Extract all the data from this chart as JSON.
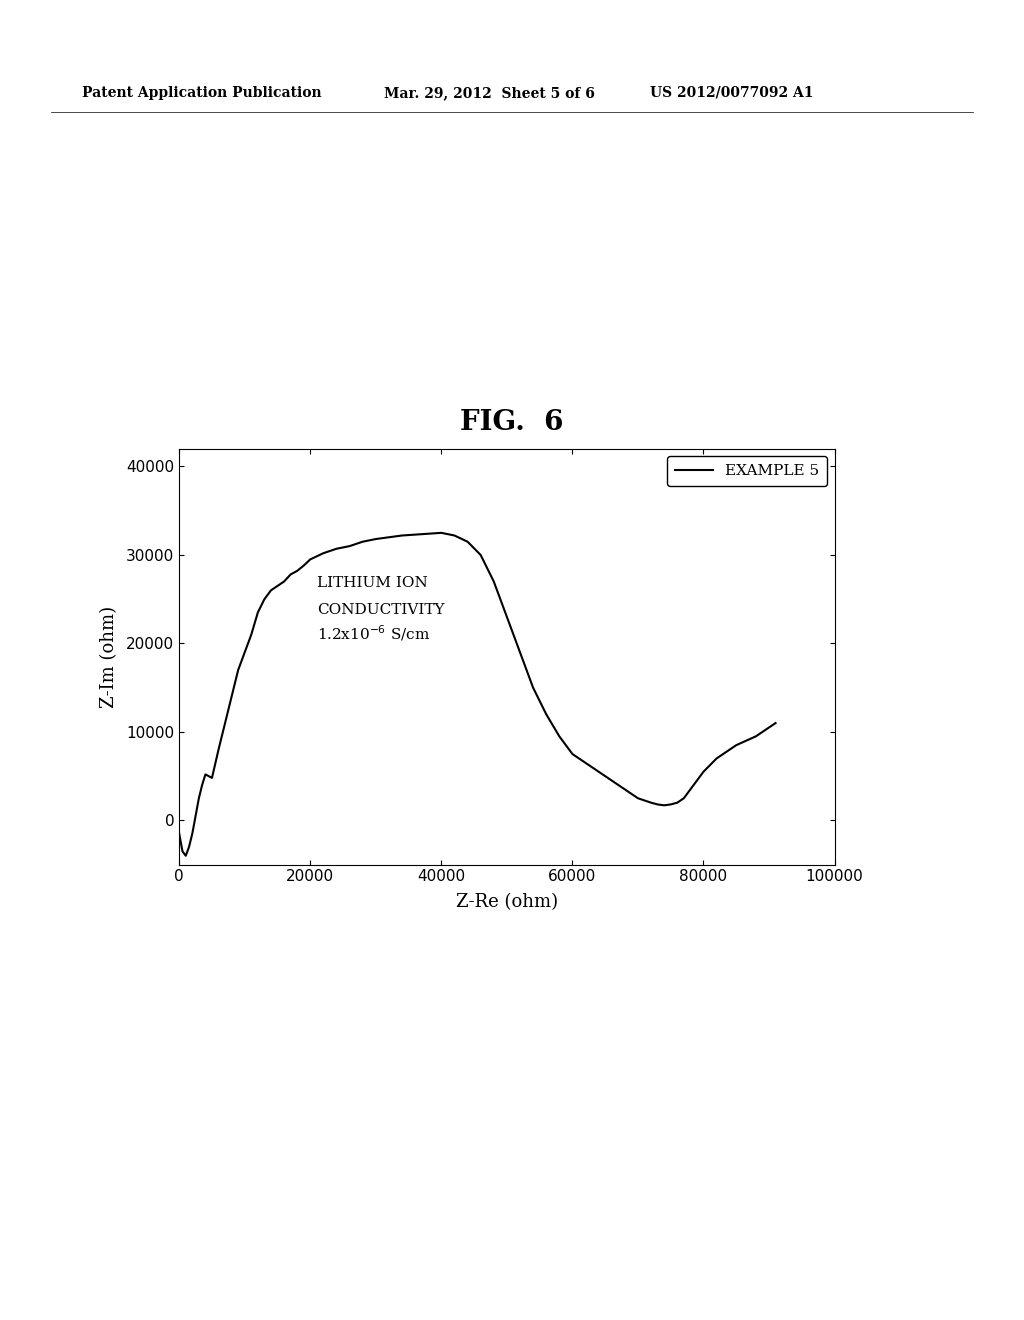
{
  "title": "FIG.  6",
  "xlabel": "Z-Re (ohm)",
  "ylabel": "Z-Im (ohm)",
  "xlim": [
    0,
    100000
  ],
  "ylim": [
    -5000,
    42000
  ],
  "xticks": [
    0,
    20000,
    40000,
    60000,
    80000,
    100000
  ],
  "yticks": [
    0,
    10000,
    20000,
    30000,
    40000
  ],
  "legend_label": "EXAMPLE 5",
  "annotation_line1": "LITHIUM ION",
  "annotation_line2": "CONDUCTIVITY",
  "annotation_line3": "1.2x10$^{-6}$ S/cm",
  "line_color": "#000000",
  "background_color": "#ffffff",
  "header_left": "Patent Application Publication",
  "header_center": "Mar. 29, 2012  Sheet 5 of 6",
  "header_right": "US 2012/0077092 A1",
  "x_data": [
    0,
    500,
    1000,
    1500,
    2000,
    2500,
    3000,
    3500,
    4000,
    4500,
    5000,
    6000,
    7000,
    8000,
    9000,
    10000,
    11000,
    12000,
    13000,
    14000,
    15000,
    16000,
    17000,
    18000,
    19000,
    20000,
    22000,
    24000,
    26000,
    28000,
    30000,
    32000,
    34000,
    36000,
    38000,
    40000,
    42000,
    44000,
    46000,
    48000,
    50000,
    52000,
    54000,
    56000,
    58000,
    60000,
    62000,
    64000,
    66000,
    68000,
    70000,
    72000,
    73000,
    74000,
    75000,
    76000,
    77000,
    78000,
    80000,
    82000,
    85000,
    88000,
    91000
  ],
  "y_data": [
    -1500,
    -3500,
    -4000,
    -3000,
    -1500,
    500,
    2500,
    4000,
    5200,
    5000,
    4800,
    8000,
    11000,
    14000,
    17000,
    19000,
    21000,
    23500,
    25000,
    26000,
    26500,
    27000,
    27800,
    28200,
    28800,
    29500,
    30200,
    30700,
    31000,
    31500,
    31800,
    32000,
    32200,
    32300,
    32400,
    32500,
    32200,
    31500,
    30000,
    27000,
    23000,
    19000,
    15000,
    12000,
    9500,
    7500,
    6500,
    5500,
    4500,
    3500,
    2500,
    2000,
    1800,
    1700,
    1800,
    2000,
    2500,
    3500,
    5500,
    7000,
    8500,
    9500,
    11000
  ]
}
